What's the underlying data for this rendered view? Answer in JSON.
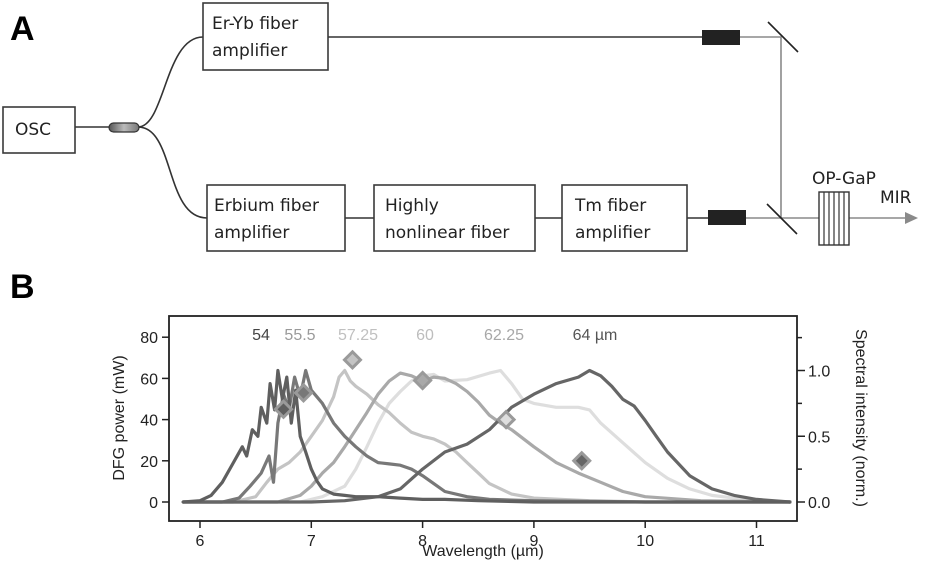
{
  "panels": {
    "a": {
      "label": "A",
      "boxes": {
        "osc": [
          "OSC"
        ],
        "er_yb": [
          "Er-Yb fiber",
          "amplifier"
        ],
        "erbium": [
          "Erbium fiber",
          "amplifier"
        ],
        "hnlf": [
          "Highly",
          "nonlinear fiber"
        ],
        "tm": [
          "Tm fiber",
          "amplifier"
        ]
      },
      "crystal_label": "OP-GaP",
      "output_label": "MIR"
    },
    "b": {
      "label": "B"
    }
  },
  "chart_data": {
    "type": "line",
    "title": "",
    "xlabel": "Wavelength (µm)",
    "ylabel": "DFG power (mW)",
    "ylabel_right": "Spectral intensity (norm.)",
    "xlim": [
      5.7,
      11.35
    ],
    "ylim": [
      -5,
      90
    ],
    "ylim_right": [
      -0.06,
      1.32
    ],
    "x_ticks": [
      6,
      7,
      8,
      9,
      10,
      11
    ],
    "y_ticks": [
      0,
      20,
      40,
      60,
      80
    ],
    "y_ticks_right": [
      0.0,
      0.5,
      1.0
    ],
    "y_ticks_right_minor": [
      0.25,
      0.75,
      1.25
    ],
    "grid": false,
    "legend_position": "top-inline",
    "series": [
      {
        "name": "54",
        "poling_period_um": 54,
        "color": "#5f5f5f",
        "dfg_power_marker": {
          "x": 6.75,
          "y": 45
        },
        "spectrum": {
          "x": [
            5.85,
            6.0,
            6.1,
            6.2,
            6.3,
            6.38,
            6.42,
            6.47,
            6.52,
            6.55,
            6.6,
            6.63,
            6.67,
            6.7,
            6.74,
            6.78,
            6.82,
            6.86,
            6.9,
            6.95,
            7.0,
            7.05,
            7.1,
            7.2,
            7.3,
            7.4,
            7.6,
            7.8,
            8.0,
            8.2,
            8.5,
            9.0,
            10.0,
            11.3
          ],
          "y": [
            0.0,
            0.01,
            0.05,
            0.15,
            0.3,
            0.42,
            0.35,
            0.55,
            0.5,
            0.72,
            0.6,
            0.9,
            0.7,
            1.0,
            0.78,
            0.95,
            0.6,
            0.85,
            0.5,
            0.38,
            0.25,
            0.16,
            0.1,
            0.06,
            0.05,
            0.04,
            0.04,
            0.03,
            0.02,
            0.02,
            0.01,
            0.0,
            0.0,
            0.0
          ]
        }
      },
      {
        "name": "55.5",
        "poling_period_um": 55.5,
        "color": "#787878",
        "dfg_power_marker": {
          "x": 6.93,
          "y": 53
        },
        "spectrum": {
          "x": [
            5.85,
            6.2,
            6.35,
            6.45,
            6.55,
            6.62,
            6.66,
            6.7,
            6.75,
            6.8,
            6.85,
            6.9,
            6.95,
            7.0,
            7.05,
            7.1,
            7.2,
            7.3,
            7.4,
            7.5,
            7.6,
            7.7,
            7.8,
            7.9,
            8.0,
            8.1,
            8.2,
            8.4,
            8.6,
            9.0,
            10.0,
            11.3
          ],
          "y": [
            0.0,
            0.0,
            0.03,
            0.12,
            0.22,
            0.35,
            0.15,
            0.6,
            0.82,
            0.7,
            0.95,
            0.8,
            1.0,
            0.85,
            0.8,
            0.75,
            0.6,
            0.5,
            0.42,
            0.35,
            0.3,
            0.29,
            0.28,
            0.25,
            0.2,
            0.14,
            0.08,
            0.04,
            0.02,
            0.01,
            0.0,
            0.0
          ]
        }
      },
      {
        "name": "57.25",
        "poling_period_um": 57.25,
        "color": "#c4c4c4",
        "dfg_power_marker": {
          "x": 7.37,
          "y": 69
        },
        "spectrum": {
          "x": [
            5.85,
            6.3,
            6.5,
            6.6,
            6.7,
            6.8,
            6.9,
            7.0,
            7.1,
            7.2,
            7.25,
            7.3,
            7.35,
            7.4,
            7.5,
            7.6,
            7.7,
            7.8,
            7.9,
            8.0,
            8.1,
            8.2,
            8.3,
            8.4,
            8.5,
            8.6,
            8.8,
            9.0,
            9.5,
            10.0,
            11.3
          ],
          "y": [
            0.0,
            0.0,
            0.04,
            0.15,
            0.25,
            0.3,
            0.38,
            0.5,
            0.62,
            0.8,
            0.95,
            1.0,
            0.92,
            0.88,
            0.82,
            0.74,
            0.68,
            0.6,
            0.53,
            0.5,
            0.48,
            0.44,
            0.38,
            0.3,
            0.22,
            0.14,
            0.06,
            0.03,
            0.01,
            0.0,
            0.0
          ]
        }
      },
      {
        "name": "60",
        "poling_period_um": 60,
        "color": "#a9a9a9",
        "dfg_power_marker": {
          "x": 8.0,
          "y": 59
        },
        "spectrum": {
          "x": [
            5.85,
            6.7,
            6.9,
            7.0,
            7.1,
            7.2,
            7.3,
            7.4,
            7.5,
            7.6,
            7.7,
            7.8,
            7.9,
            8.0,
            8.1,
            8.2,
            8.3,
            8.4,
            8.5,
            8.6,
            8.7,
            8.8,
            9.0,
            9.2,
            9.4,
            9.6,
            9.8,
            10.0,
            10.5,
            11.3
          ],
          "y": [
            0.0,
            0.0,
            0.05,
            0.12,
            0.22,
            0.3,
            0.42,
            0.55,
            0.68,
            0.82,
            0.92,
            0.98,
            0.96,
            0.92,
            0.95,
            0.94,
            0.9,
            0.84,
            0.76,
            0.66,
            0.6,
            0.55,
            0.42,
            0.3,
            0.22,
            0.15,
            0.08,
            0.04,
            0.01,
            0.0
          ]
        }
      },
      {
        "name": "62.25",
        "poling_period_um": 62.25,
        "color": "#dedede",
        "dfg_power_marker": {
          "x": 8.75,
          "y": 40
        },
        "spectrum": {
          "x": [
            5.85,
            6.9,
            7.1,
            7.3,
            7.4,
            7.5,
            7.6,
            7.7,
            7.8,
            7.9,
            8.0,
            8.1,
            8.2,
            8.4,
            8.6,
            8.7,
            8.8,
            8.9,
            9.0,
            9.2,
            9.4,
            9.5,
            9.6,
            9.8,
            10.0,
            10.2,
            10.4,
            10.6,
            11.0,
            11.3
          ],
          "y": [
            0.0,
            0.0,
            0.04,
            0.12,
            0.25,
            0.42,
            0.6,
            0.75,
            0.84,
            0.92,
            0.96,
            0.97,
            0.92,
            0.93,
            0.98,
            1.0,
            0.9,
            0.78,
            0.75,
            0.72,
            0.72,
            0.7,
            0.6,
            0.45,
            0.3,
            0.18,
            0.1,
            0.05,
            0.01,
            0.0
          ]
        }
      },
      {
        "name": "64",
        "poling_period_um": 64,
        "color": "#666666",
        "unit_label": "µm",
        "dfg_power_marker": {
          "x": 9.43,
          "y": 20
        },
        "spectrum": {
          "x": [
            5.85,
            7.0,
            7.3,
            7.6,
            7.8,
            8.0,
            8.2,
            8.4,
            8.6,
            8.8,
            9.0,
            9.2,
            9.4,
            9.5,
            9.6,
            9.7,
            9.8,
            9.9,
            10.0,
            10.1,
            10.2,
            10.4,
            10.6,
            10.8,
            11.0,
            11.3
          ],
          "y": [
            0.0,
            0.0,
            0.01,
            0.04,
            0.1,
            0.25,
            0.38,
            0.44,
            0.55,
            0.72,
            0.82,
            0.9,
            0.95,
            1.0,
            0.96,
            0.88,
            0.78,
            0.73,
            0.62,
            0.5,
            0.38,
            0.2,
            0.1,
            0.05,
            0.02,
            0.0
          ]
        }
      }
    ],
    "dfg_power_mw": [
      {
        "period_um": 54,
        "center_wavelength_um": 6.75,
        "power_mw": 45
      },
      {
        "period_um": 55.5,
        "center_wavelength_um": 6.93,
        "power_mw": 53
      },
      {
        "period_um": 57.25,
        "center_wavelength_um": 7.37,
        "power_mw": 69
      },
      {
        "period_um": 60,
        "center_wavelength_um": 8.0,
        "power_mw": 59
      },
      {
        "period_um": 62.25,
        "center_wavelength_um": 8.75,
        "power_mw": 40
      },
      {
        "period_um": 64,
        "center_wavelength_um": 9.43,
        "power_mw": 20
      }
    ],
    "annotations": [
      "54",
      "55.5",
      "57.25",
      "60",
      "62.25",
      "64 µm"
    ]
  }
}
